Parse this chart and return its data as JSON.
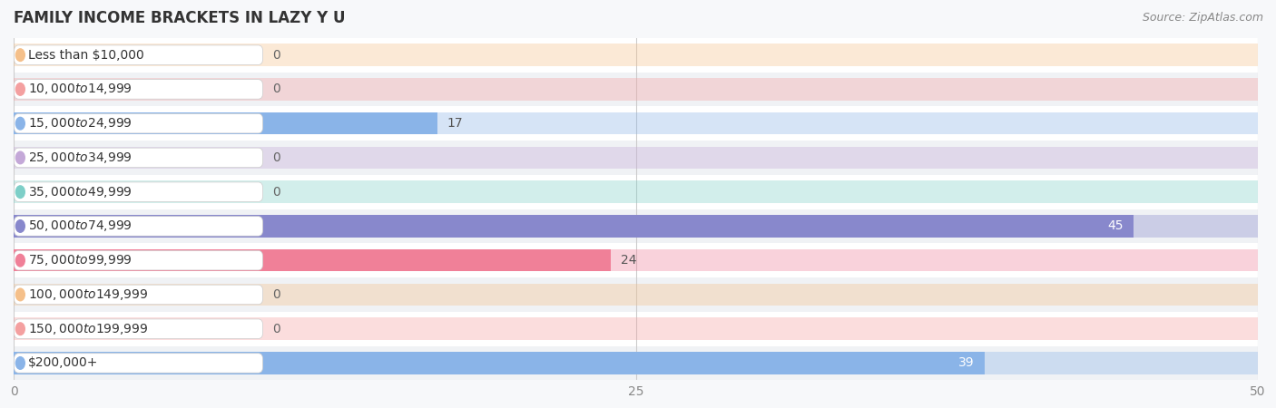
{
  "title": "FAMILY INCOME BRACKETS IN LAZY Y U",
  "source": "Source: ZipAtlas.com",
  "categories": [
    "Less than $10,000",
    "$10,000 to $14,999",
    "$15,000 to $24,999",
    "$25,000 to $34,999",
    "$35,000 to $49,999",
    "$50,000 to $74,999",
    "$75,000 to $99,999",
    "$100,000 to $149,999",
    "$150,000 to $199,999",
    "$200,000+"
  ],
  "values": [
    0,
    0,
    17,
    0,
    0,
    45,
    24,
    0,
    0,
    39
  ],
  "bar_colors": [
    "#f5c08a",
    "#f4a0a0",
    "#8ab4e8",
    "#c4a8d8",
    "#7ecfc8",
    "#8888cc",
    "#f08098",
    "#f5c08a",
    "#f4a0a0",
    "#8ab4e8"
  ],
  "value_label_colors": [
    "#555555",
    "#555555",
    "#555555",
    "#555555",
    "#555555",
    "#ffffff",
    "#555555",
    "#555555",
    "#555555",
    "#ffffff"
  ],
  "xlim": [
    0,
    50
  ],
  "xticks": [
    0,
    25,
    50
  ],
  "title_fontsize": 12,
  "label_fontsize": 10,
  "tick_fontsize": 10,
  "source_fontsize": 9,
  "bar_height": 0.65,
  "row_colors": [
    "#ffffff",
    "#f0f2f5"
  ],
  "bg_bar_color": "#e2e4ea",
  "white_label_bg": "#ffffff"
}
